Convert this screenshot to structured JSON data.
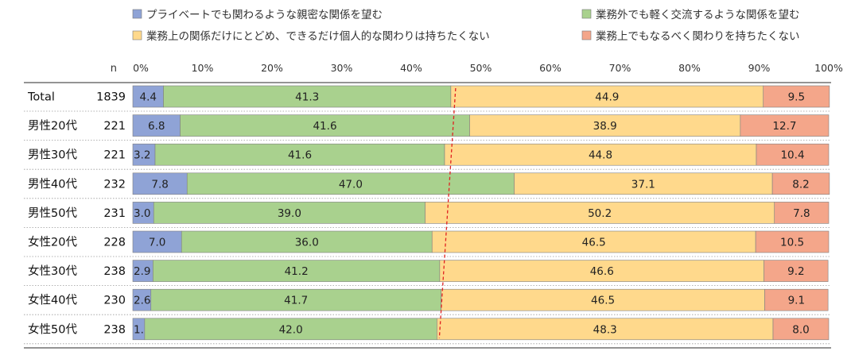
{
  "chart_data": {
    "type": "bar",
    "orientation": "horizontal",
    "stacked": true,
    "percent": true,
    "n_label": "n",
    "categories": [
      "Total",
      "男性20代",
      "男性30代",
      "男性40代",
      "男性50代",
      "女性20代",
      "女性30代",
      "女性40代",
      "女性50代"
    ],
    "n": [
      "1839",
      "221",
      "221",
      "232",
      "231",
      "228",
      "238",
      "230",
      "238"
    ],
    "series": [
      {
        "name": "プライベートでも関わるような親密な関係を望む",
        "color": "#8fa3d6",
        "values": [
          4.4,
          6.8,
          3.2,
          7.8,
          3.0,
          7.0,
          2.9,
          2.6,
          1.7
        ],
        "labels": [
          "4.4",
          "6.8",
          "3.2",
          "7.8",
          "3.0",
          "7.0",
          "2.9",
          "2.6",
          "1.7"
        ]
      },
      {
        "name": "業務外でも軽く交流するような関係を望む",
        "color": "#a9d18e",
        "values": [
          41.3,
          41.6,
          41.6,
          47.0,
          39.0,
          36.0,
          41.2,
          41.7,
          42.0
        ],
        "labels": [
          "41.3",
          "41.6",
          "41.6",
          "47.0",
          "39.0",
          "36.0",
          "41.2",
          "41.7",
          "42.0"
        ]
      },
      {
        "name": "業務上の関係だけにとどめ、できるだけ個人的な関わりは持ちたくない",
        "color": "#ffd98c",
        "values": [
          44.9,
          38.9,
          44.8,
          37.1,
          50.2,
          46.5,
          46.6,
          46.5,
          48.3
        ],
        "labels": [
          "44.9",
          "38.9",
          "44.8",
          "37.1",
          "50.2",
          "46.5",
          "46.6",
          "46.5",
          "48.3"
        ]
      },
      {
        "name": "業務上でもなるべく関わりを持ちたくない",
        "color": "#f4a68a",
        "values": [
          9.5,
          12.7,
          10.4,
          8.2,
          7.8,
          10.5,
          9.2,
          9.1,
          8.0
        ],
        "labels": [
          "9.5",
          "12.7",
          "10.4",
          "8.2",
          "7.8",
          "10.5",
          "9.2",
          "9.1",
          "8.0"
        ]
      }
    ],
    "xlim": [
      0,
      100
    ],
    "xticks": [
      "0%",
      "10%",
      "20%",
      "30%",
      "40%",
      "50%",
      "60%",
      "70%",
      "80%",
      "90%",
      "100%"
    ],
    "reference_line": {
      "style": "dashed",
      "color": "#e02020",
      "connects": "series 1 + series 2 boundary of each bar"
    },
    "legend_position": "top",
    "grid": false
  }
}
